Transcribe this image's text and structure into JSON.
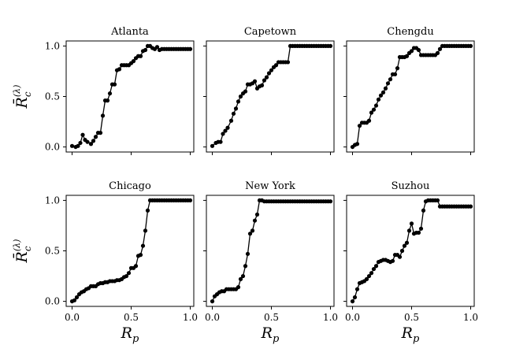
{
  "figure": {
    "x_axis_label": "R_p",
    "y_axis_label": "R̄_c^(λ)"
  },
  "chart_data": [
    {
      "type": "line",
      "title": "Atlanta",
      "xlabel": "",
      "ylabel": "R̄_c^(λ)",
      "xlim": [
        -0.05,
        1.03
      ],
      "ylim": [
        -0.05,
        1.05
      ],
      "xticks": [
        "",
        "",
        "",
        ""
      ],
      "yticks": [
        "0.0",
        "0.5",
        "1.0"
      ],
      "grid": false,
      "x": [
        0.0,
        0.03,
        0.05,
        0.07,
        0.09,
        0.11,
        0.13,
        0.16,
        0.18,
        0.2,
        0.22,
        0.24,
        0.26,
        0.28,
        0.3,
        0.32,
        0.34,
        0.36,
        0.38,
        0.4,
        0.42,
        0.44,
        0.46,
        0.48,
        0.5,
        0.52,
        0.54,
        0.56,
        0.58,
        0.6,
        0.62,
        0.64,
        0.66,
        0.68,
        0.7,
        0.72,
        0.74,
        0.76,
        0.78,
        0.8,
        0.82,
        0.84,
        0.86,
        0.88,
        0.9,
        0.92,
        0.94,
        0.96,
        0.98,
        1.0
      ],
      "y": [
        0.01,
        0.0,
        0.01,
        0.04,
        0.12,
        0.07,
        0.05,
        0.03,
        0.06,
        0.1,
        0.14,
        0.14,
        0.31,
        0.46,
        0.46,
        0.53,
        0.62,
        0.62,
        0.76,
        0.77,
        0.81,
        0.81,
        0.81,
        0.81,
        0.83,
        0.85,
        0.88,
        0.9,
        0.9,
        0.95,
        0.96,
        1.0,
        1.0,
        0.98,
        0.97,
        0.99,
        0.96,
        0.97,
        0.97,
        0.97,
        0.97,
        0.97,
        0.97,
        0.97,
        0.97,
        0.97,
        0.97,
        0.97,
        0.97,
        0.97
      ]
    },
    {
      "type": "line",
      "title": "Capetown",
      "xlabel": "",
      "ylabel": "",
      "xlim": [
        -0.05,
        1.03
      ],
      "ylim": [
        -0.05,
        1.05
      ],
      "xticks": [
        "",
        "",
        "",
        ""
      ],
      "yticks": [
        "",
        "",
        ""
      ],
      "grid": false,
      "x": [
        0.0,
        0.03,
        0.05,
        0.07,
        0.09,
        0.11,
        0.13,
        0.16,
        0.18,
        0.2,
        0.22,
        0.24,
        0.26,
        0.28,
        0.3,
        0.32,
        0.34,
        0.36,
        0.38,
        0.4,
        0.42,
        0.44,
        0.46,
        0.48,
        0.5,
        0.52,
        0.54,
        0.56,
        0.58,
        0.6,
        0.62,
        0.64,
        0.66,
        0.68,
        0.7,
        0.72,
        0.74,
        0.76,
        0.78,
        0.8,
        0.82,
        0.84,
        0.86,
        0.88,
        0.9,
        0.92,
        0.94,
        0.96,
        0.98,
        1.0
      ],
      "y": [
        0.01,
        0.04,
        0.05,
        0.05,
        0.13,
        0.16,
        0.19,
        0.26,
        0.33,
        0.38,
        0.45,
        0.5,
        0.53,
        0.55,
        0.62,
        0.62,
        0.63,
        0.65,
        0.58,
        0.6,
        0.61,
        0.66,
        0.69,
        0.73,
        0.76,
        0.79,
        0.81,
        0.84,
        0.84,
        0.84,
        0.84,
        0.84,
        1.0,
        1.0,
        1.0,
        1.0,
        1.0,
        1.0,
        1.0,
        1.0,
        1.0,
        1.0,
        1.0,
        1.0,
        1.0,
        1.0,
        1.0,
        1.0,
        1.0,
        1.0
      ]
    },
    {
      "type": "line",
      "title": "Chengdu",
      "xlabel": "",
      "ylabel": "",
      "xlim": [
        -0.05,
        1.03
      ],
      "ylim": [
        -0.05,
        1.05
      ],
      "xticks": [
        "",
        "",
        "",
        ""
      ],
      "yticks": [
        "",
        "",
        ""
      ],
      "grid": false,
      "x": [
        0.0,
        0.02,
        0.04,
        0.06,
        0.08,
        0.1,
        0.12,
        0.14,
        0.16,
        0.18,
        0.2,
        0.22,
        0.24,
        0.26,
        0.28,
        0.3,
        0.32,
        0.34,
        0.36,
        0.38,
        0.4,
        0.42,
        0.44,
        0.46,
        0.48,
        0.5,
        0.52,
        0.54,
        0.56,
        0.58,
        0.6,
        0.62,
        0.64,
        0.66,
        0.68,
        0.7,
        0.72,
        0.74,
        0.76,
        0.78,
        0.8,
        0.82,
        0.84,
        0.86,
        0.88,
        0.9,
        0.92,
        0.94,
        0.96,
        0.98,
        1.0
      ],
      "y": [
        0.0,
        0.02,
        0.03,
        0.21,
        0.24,
        0.24,
        0.24,
        0.26,
        0.34,
        0.37,
        0.41,
        0.47,
        0.51,
        0.54,
        0.58,
        0.63,
        0.67,
        0.72,
        0.72,
        0.78,
        0.89,
        0.89,
        0.89,
        0.9,
        0.93,
        0.95,
        0.98,
        0.98,
        0.96,
        0.91,
        0.91,
        0.91,
        0.91,
        0.91,
        0.91,
        0.91,
        0.93,
        0.97,
        1.0,
        1.0,
        1.0,
        1.0,
        1.0,
        1.0,
        1.0,
        1.0,
        1.0,
        1.0,
        1.0,
        1.0,
        1.0
      ]
    },
    {
      "type": "line",
      "title": "Chicago",
      "xlabel": "R_p",
      "ylabel": "R̄_c^(λ)",
      "xlim": [
        -0.05,
        1.03
      ],
      "ylim": [
        -0.05,
        1.05
      ],
      "xticks": [
        "0.0",
        "0.5",
        "1.0"
      ],
      "yticks": [
        "0.0",
        "0.5",
        "1.0"
      ],
      "grid": false,
      "x": [
        0.0,
        0.02,
        0.04,
        0.06,
        0.08,
        0.1,
        0.12,
        0.14,
        0.16,
        0.18,
        0.2,
        0.22,
        0.24,
        0.26,
        0.28,
        0.3,
        0.32,
        0.34,
        0.36,
        0.38,
        0.4,
        0.42,
        0.44,
        0.46,
        0.48,
        0.5,
        0.52,
        0.54,
        0.56,
        0.58,
        0.6,
        0.62,
        0.64,
        0.66,
        0.68,
        0.7,
        0.72,
        0.74,
        0.76,
        0.78,
        0.8,
        0.82,
        0.84,
        0.86,
        0.88,
        0.9,
        0.92,
        0.94,
        0.96,
        0.98,
        1.0
      ],
      "y": [
        0.0,
        0.01,
        0.04,
        0.07,
        0.09,
        0.1,
        0.12,
        0.13,
        0.15,
        0.15,
        0.15,
        0.17,
        0.18,
        0.18,
        0.19,
        0.19,
        0.2,
        0.2,
        0.2,
        0.21,
        0.21,
        0.22,
        0.24,
        0.25,
        0.28,
        0.33,
        0.33,
        0.35,
        0.45,
        0.46,
        0.55,
        0.7,
        0.9,
        1.0,
        1.0,
        1.0,
        1.0,
        1.0,
        1.0,
        1.0,
        1.0,
        1.0,
        1.0,
        1.0,
        1.0,
        1.0,
        1.0,
        1.0,
        1.0,
        1.0,
        1.0
      ]
    },
    {
      "type": "line",
      "title": "New York",
      "xlabel": "R_p",
      "ylabel": "",
      "xlim": [
        -0.05,
        1.03
      ],
      "ylim": [
        -0.05,
        1.05
      ],
      "xticks": [
        "0.0",
        "0.5",
        "1.0"
      ],
      "yticks": [
        "",
        "",
        ""
      ],
      "grid": false,
      "x": [
        0.0,
        0.02,
        0.04,
        0.06,
        0.08,
        0.1,
        0.12,
        0.14,
        0.16,
        0.18,
        0.2,
        0.22,
        0.24,
        0.26,
        0.28,
        0.3,
        0.32,
        0.34,
        0.36,
        0.38,
        0.4,
        0.42,
        0.44,
        0.46,
        0.48,
        0.5,
        0.52,
        0.54,
        0.56,
        0.58,
        0.6,
        0.62,
        0.64,
        0.66,
        0.68,
        0.7,
        0.72,
        0.74,
        0.76,
        0.78,
        0.8,
        0.82,
        0.84,
        0.86,
        0.88,
        0.9,
        0.92,
        0.94,
        0.96,
        0.98,
        1.0
      ],
      "y": [
        0.0,
        0.05,
        0.07,
        0.09,
        0.1,
        0.1,
        0.12,
        0.12,
        0.12,
        0.12,
        0.12,
        0.14,
        0.22,
        0.25,
        0.35,
        0.47,
        0.67,
        0.7,
        0.8,
        0.86,
        1.0,
        1.0,
        0.99,
        0.99,
        0.99,
        0.99,
        0.99,
        0.99,
        0.99,
        0.99,
        0.99,
        0.99,
        0.99,
        0.99,
        0.99,
        0.99,
        0.99,
        0.99,
        0.99,
        0.99,
        0.99,
        0.99,
        0.99,
        0.99,
        0.99,
        0.99,
        0.99,
        0.99,
        0.99,
        0.99,
        0.99
      ]
    },
    {
      "type": "line",
      "title": "Suzhou",
      "xlabel": "R_p",
      "ylabel": "",
      "xlim": [
        -0.05,
        1.03
      ],
      "ylim": [
        -0.05,
        1.05
      ],
      "xticks": [
        "0.0",
        "0.5",
        "1.0"
      ],
      "yticks": [
        "",
        "",
        ""
      ],
      "grid": false,
      "x": [
        0.0,
        0.02,
        0.04,
        0.06,
        0.08,
        0.1,
        0.12,
        0.14,
        0.16,
        0.18,
        0.2,
        0.22,
        0.24,
        0.26,
        0.28,
        0.3,
        0.32,
        0.34,
        0.36,
        0.38,
        0.4,
        0.42,
        0.44,
        0.46,
        0.48,
        0.5,
        0.52,
        0.54,
        0.56,
        0.58,
        0.6,
        0.62,
        0.64,
        0.66,
        0.68,
        0.7,
        0.72,
        0.74,
        0.76,
        0.78,
        0.8,
        0.82,
        0.84,
        0.86,
        0.88,
        0.9,
        0.92,
        0.94,
        0.96,
        0.98,
        1.0
      ],
      "y": [
        0.0,
        0.04,
        0.12,
        0.18,
        0.19,
        0.2,
        0.22,
        0.25,
        0.28,
        0.32,
        0.35,
        0.39,
        0.4,
        0.41,
        0.41,
        0.4,
        0.39,
        0.4,
        0.46,
        0.46,
        0.44,
        0.5,
        0.55,
        0.58,
        0.7,
        0.77,
        0.67,
        0.68,
        0.68,
        0.72,
        0.9,
        0.99,
        1.0,
        1.0,
        1.0,
        1.0,
        1.0,
        0.94,
        0.94,
        0.94,
        0.94,
        0.94,
        0.94,
        0.94,
        0.94,
        0.94,
        0.94,
        0.94,
        0.94,
        0.94,
        0.94
      ]
    }
  ]
}
